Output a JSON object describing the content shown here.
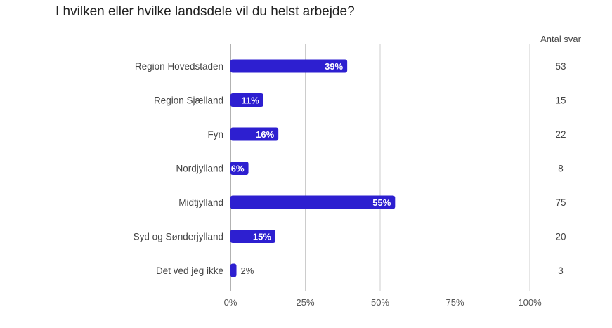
{
  "chart_data": {
    "type": "bar",
    "orientation": "horizontal",
    "title": "I hvilken eller hvilke landsdele vil du helst arbejde?",
    "categories": [
      "Region Hovedstaden",
      "Region Sjælland",
      "Fyn",
      "Nordjylland",
      "Midtjylland",
      "Syd og Sønderjylland",
      "Det ved jeg ikke"
    ],
    "values": [
      39,
      11,
      16,
      6,
      55,
      15,
      2
    ],
    "value_labels": [
      "39%",
      "11%",
      "16%",
      "6%",
      "55%",
      "15%",
      "2%"
    ],
    "counts": [
      53,
      15,
      22,
      8,
      75,
      20,
      3
    ],
    "count_header": "Antal svar",
    "xlim": [
      0,
      100
    ],
    "ticks": [
      0,
      25,
      50,
      75,
      100
    ],
    "tick_labels": [
      "0%",
      "25%",
      "50%",
      "75%",
      "100%"
    ],
    "grid": true,
    "bar_color": "#2d1fd0"
  }
}
